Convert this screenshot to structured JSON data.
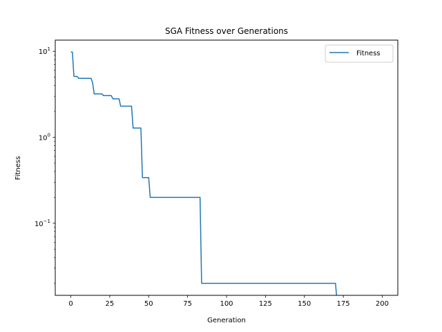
{
  "chart_data": {
    "type": "line",
    "title": "SGA Fitness over Generations",
    "xlabel": "Generation",
    "ylabel": "Fitness",
    "xscale": "linear",
    "yscale": "log",
    "xlim": [
      -10,
      210
    ],
    "ylim": [
      0.0145,
      13.5
    ],
    "xticks": [
      0,
      25,
      50,
      75,
      100,
      125,
      150,
      175,
      200
    ],
    "xtick_labels": [
      "0",
      "25",
      "50",
      "75",
      "100",
      "125",
      "150",
      "175",
      "200"
    ],
    "yticks": [
      0.1,
      1,
      10
    ],
    "ytick_label_parts": [
      {
        "base": "10",
        "exp": "−1"
      },
      {
        "base": "10",
        "exp": "0"
      },
      {
        "base": "10",
        "exp": "1"
      }
    ],
    "grid": false,
    "legend": {
      "placement": "top-right",
      "entries": [
        "Fitness"
      ]
    },
    "series": [
      {
        "name": "Fitness",
        "color": "#1f77b4",
        "x": [
          0,
          1,
          2,
          4,
          5,
          13,
          14,
          15,
          20,
          21,
          26,
          27,
          31,
          32,
          39,
          40,
          45,
          46,
          50,
          51,
          83,
          84,
          170,
          171,
          200
        ],
        "y": [
          9.8,
          9.8,
          5.1,
          5.1,
          4.85,
          4.85,
          4.3,
          3.2,
          3.2,
          3.05,
          3.05,
          2.8,
          2.8,
          2.3,
          2.3,
          1.28,
          1.28,
          0.34,
          0.34,
          0.2,
          0.2,
          0.02,
          0.02,
          0.012,
          0.012
        ]
      }
    ]
  }
}
